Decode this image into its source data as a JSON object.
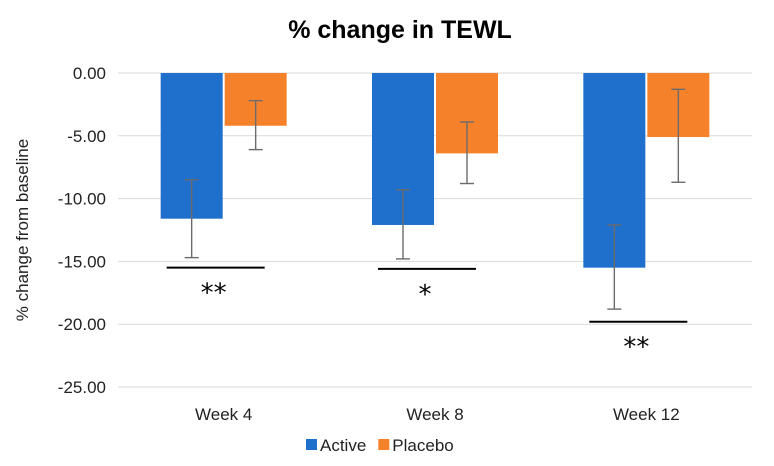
{
  "chart_data": {
    "type": "bar",
    "title": "% change in TEWL",
    "ylabel": "% change from baseline",
    "xlabel": "",
    "categories": [
      "Week 4",
      "Week 8",
      "Week 12"
    ],
    "ylim": [
      -25,
      0
    ],
    "yticks": [
      0,
      -5,
      -10,
      -15,
      -20,
      -25
    ],
    "ytick_labels": [
      "0.00",
      "-5.00",
      "-10.00",
      "-15.00",
      "-20.00",
      "-25.00"
    ],
    "grid": true,
    "legend_position": "bottom",
    "series": [
      {
        "name": "Active",
        "color": "#1f6fcc",
        "values": [
          -11.6,
          -12.1,
          -15.5
        ],
        "error_low": [
          -14.7,
          -14.8,
          -18.8
        ],
        "error_high": [
          -8.5,
          -9.3,
          -12.1
        ]
      },
      {
        "name": "Placebo",
        "color": "#f5822a",
        "values": [
          -4.2,
          -6.4,
          -5.1
        ],
        "error_low": [
          -6.1,
          -8.8,
          -8.7
        ],
        "error_high": [
          -2.2,
          -3.9,
          -1.3
        ]
      }
    ],
    "annotations": [
      {
        "category": "Week 4",
        "text": "**",
        "line_y": -15.5
      },
      {
        "category": "Week 8",
        "text": "*",
        "line_y": -15.6
      },
      {
        "category": "Week 12",
        "text": "**",
        "line_y": -19.8
      }
    ]
  }
}
